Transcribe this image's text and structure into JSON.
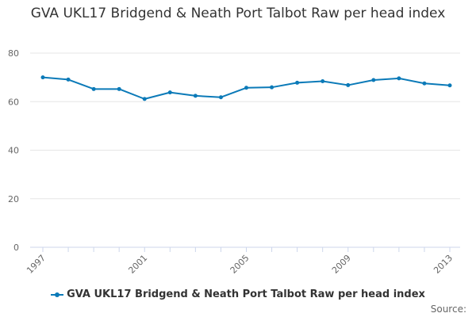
{
  "chart_data": {
    "type": "line",
    "title": "GVA UKL17 Bridgend & Neath Port Talbot Raw per head index",
    "x": [
      1997,
      1998,
      1999,
      2000,
      2001,
      2002,
      2003,
      2004,
      2005,
      2006,
      2007,
      2008,
      2009,
      2010,
      2011,
      2012,
      2013
    ],
    "series": [
      {
        "name": "GVA UKL17 Bridgend & Neath Port Talbot Raw per head index",
        "values": [
          70.0,
          69.1,
          65.2,
          65.2,
          61.1,
          63.8,
          62.4,
          61.8,
          65.7,
          65.9,
          67.8,
          68.4,
          66.8,
          68.9,
          69.6,
          67.5,
          66.7
        ]
      }
    ],
    "x_tick_labels": [
      "1997",
      "2001",
      "2005",
      "2009",
      "2013"
    ],
    "y_ticks": [
      0,
      20,
      40,
      60,
      80
    ],
    "ylim": [
      0,
      80
    ],
    "grid": true,
    "legend_position": "bottom",
    "color": "#0b7ab8"
  },
  "source_label": "Source:"
}
